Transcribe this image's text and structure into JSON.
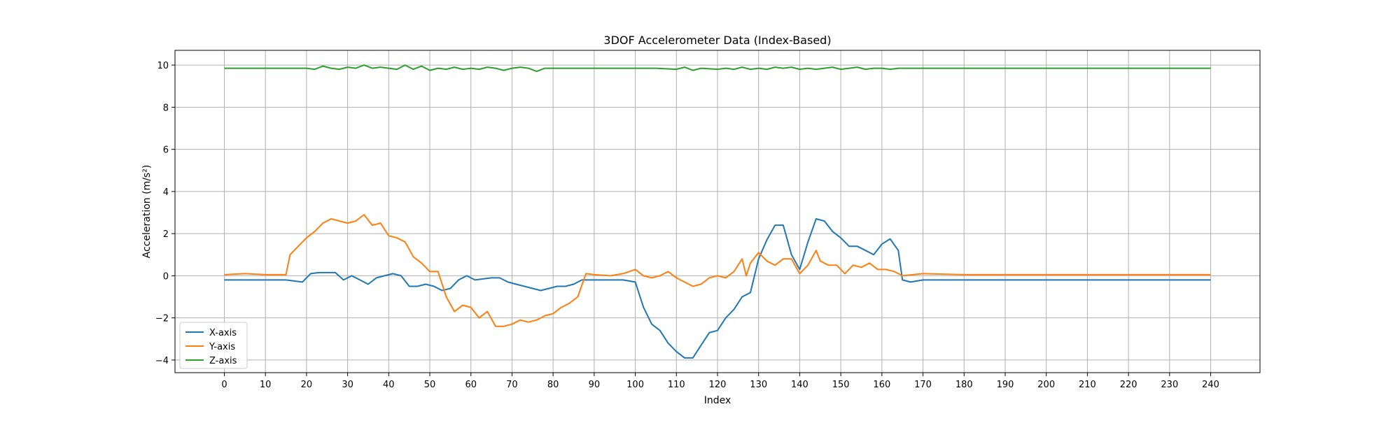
{
  "chart_data": {
    "type": "line",
    "title": "3DOF Accelerometer Data (Index-Based)",
    "xlabel": "Index",
    "ylabel": "Acceleration (m/s²)",
    "xlim": [
      -12,
      252
    ],
    "ylim": [
      -4.6,
      10.7
    ],
    "xticks": [
      0,
      10,
      20,
      30,
      40,
      50,
      60,
      70,
      80,
      90,
      100,
      110,
      120,
      130,
      140,
      150,
      160,
      170,
      180,
      190,
      200,
      210,
      220,
      230,
      240
    ],
    "yticks": [
      -4,
      -2,
      0,
      2,
      4,
      6,
      8,
      10
    ],
    "grid": true,
    "legend": "lower-left",
    "series": [
      {
        "name": "X-axis",
        "color": "#1f77b4",
        "x": [
          0,
          5,
          10,
          15,
          19,
          21,
          23,
          25,
          27,
          29,
          31,
          33,
          35,
          37,
          39,
          41,
          43,
          45,
          47,
          49,
          51,
          53,
          55,
          57,
          59,
          61,
          63,
          65,
          67,
          69,
          71,
          73,
          75,
          77,
          79,
          81,
          83,
          85,
          87,
          90,
          94,
          97,
          100,
          102,
          104,
          106,
          108,
          110,
          112,
          114,
          116,
          118,
          120,
          122,
          124,
          126,
          128,
          130,
          132,
          134,
          136,
          138,
          140,
          142,
          144,
          146,
          148,
          150,
          152,
          154,
          156,
          158,
          160,
          162,
          164,
          165,
          167,
          170,
          180,
          190,
          200,
          210,
          220,
          230,
          240
        ],
        "values": [
          -0.2,
          -0.2,
          -0.2,
          -0.2,
          -0.3,
          0.1,
          0.15,
          0.15,
          0.15,
          -0.2,
          0.0,
          -0.2,
          -0.4,
          -0.1,
          0.0,
          0.1,
          0.0,
          -0.5,
          -0.5,
          -0.4,
          -0.5,
          -0.7,
          -0.6,
          -0.2,
          0.0,
          -0.2,
          -0.15,
          -0.1,
          -0.1,
          -0.3,
          -0.4,
          -0.5,
          -0.6,
          -0.7,
          -0.6,
          -0.5,
          -0.5,
          -0.4,
          -0.2,
          -0.2,
          -0.2,
          -0.2,
          -0.3,
          -1.5,
          -2.3,
          -2.6,
          -3.2,
          -3.6,
          -3.9,
          -3.9,
          -3.3,
          -2.7,
          -2.6,
          -2.0,
          -1.6,
          -1.0,
          -0.8,
          0.8,
          1.7,
          2.4,
          2.4,
          1.0,
          0.3,
          1.6,
          2.7,
          2.6,
          2.1,
          1.8,
          1.4,
          1.4,
          1.2,
          1.0,
          1.5,
          1.75,
          1.2,
          -0.2,
          -0.3,
          -0.2,
          -0.2,
          -0.2,
          -0.2,
          -0.2,
          -0.2,
          -0.2,
          -0.2
        ]
      },
      {
        "name": "Y-axis",
        "color": "#ff7f0e",
        "x": [
          0,
          5,
          10,
          15,
          16,
          18,
          20,
          22,
          24,
          26,
          28,
          30,
          32,
          34,
          36,
          38,
          40,
          42,
          44,
          46,
          48,
          50,
          52,
          54,
          56,
          58,
          60,
          62,
          64,
          66,
          68,
          70,
          72,
          74,
          76,
          78,
          80,
          82,
          84,
          86,
          88,
          90,
          94,
          97,
          100,
          102,
          104,
          106,
          108,
          110,
          112,
          114,
          116,
          118,
          120,
          122,
          124,
          126,
          127,
          128,
          130,
          132,
          134,
          136,
          138,
          140,
          142,
          144,
          145,
          147,
          149,
          151,
          153,
          155,
          157,
          159,
          161,
          163,
          165,
          170,
          180,
          190,
          200,
          210,
          220,
          230,
          240
        ],
        "values": [
          0.05,
          0.1,
          0.05,
          0.05,
          1.0,
          1.4,
          1.8,
          2.1,
          2.5,
          2.7,
          2.6,
          2.5,
          2.6,
          2.9,
          2.4,
          2.5,
          1.9,
          1.8,
          1.6,
          0.9,
          0.6,
          0.2,
          0.2,
          -1.0,
          -1.7,
          -1.4,
          -1.5,
          -2.0,
          -1.7,
          -2.4,
          -2.4,
          -2.3,
          -2.1,
          -2.2,
          -2.1,
          -1.9,
          -1.8,
          -1.5,
          -1.3,
          -1.0,
          0.1,
          0.05,
          0.0,
          0.1,
          0.3,
          0.0,
          -0.1,
          0.0,
          0.2,
          -0.1,
          -0.3,
          -0.5,
          -0.4,
          -0.1,
          0.0,
          -0.1,
          0.2,
          0.8,
          0.0,
          0.6,
          1.1,
          0.7,
          0.5,
          0.8,
          0.8,
          0.1,
          0.5,
          1.2,
          0.7,
          0.5,
          0.5,
          0.1,
          0.5,
          0.4,
          0.6,
          0.3,
          0.3,
          0.2,
          0.0,
          0.1,
          0.05,
          0.05,
          0.05,
          0.05,
          0.05,
          0.05,
          0.05
        ]
      },
      {
        "name": "Z-axis",
        "color": "#2ca02c",
        "x": [
          0,
          5,
          10,
          15,
          20,
          22,
          24,
          26,
          28,
          30,
          32,
          34,
          36,
          38,
          40,
          42,
          44,
          46,
          48,
          50,
          52,
          54,
          56,
          58,
          60,
          62,
          64,
          66,
          68,
          70,
          72,
          74,
          76,
          78,
          80,
          85,
          90,
          95,
          100,
          105,
          110,
          112,
          114,
          116,
          120,
          122,
          124,
          126,
          128,
          130,
          132,
          134,
          136,
          138,
          140,
          142,
          144,
          146,
          148,
          150,
          152,
          154,
          156,
          158,
          160,
          162,
          164,
          170,
          180,
          190,
          200,
          210,
          220,
          230,
          240
        ],
        "values": [
          9.85,
          9.85,
          9.85,
          9.85,
          9.85,
          9.8,
          9.95,
          9.85,
          9.8,
          9.9,
          9.85,
          10.0,
          9.85,
          9.9,
          9.85,
          9.8,
          10.0,
          9.8,
          9.95,
          9.75,
          9.85,
          9.8,
          9.9,
          9.8,
          9.85,
          9.8,
          9.9,
          9.85,
          9.75,
          9.85,
          9.9,
          9.85,
          9.7,
          9.85,
          9.85,
          9.85,
          9.85,
          9.85,
          9.85,
          9.85,
          9.8,
          9.9,
          9.75,
          9.85,
          9.8,
          9.85,
          9.8,
          9.9,
          9.8,
          9.85,
          9.8,
          9.9,
          9.85,
          9.9,
          9.8,
          9.85,
          9.8,
          9.85,
          9.9,
          9.8,
          9.85,
          9.9,
          9.8,
          9.85,
          9.85,
          9.8,
          9.85,
          9.85,
          9.85,
          9.85,
          9.85,
          9.85,
          9.85,
          9.85,
          9.85
        ]
      }
    ]
  }
}
